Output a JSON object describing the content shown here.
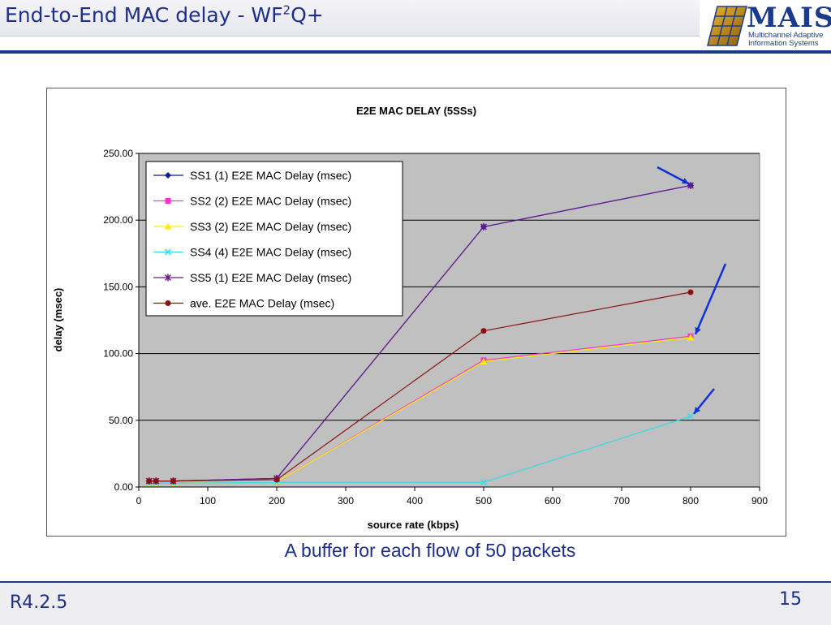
{
  "slide": {
    "title": "End-to-End MAC delay - WF",
    "title_sup": "2",
    "title_suffix": "Q+",
    "caption": "A buffer for each flow of 50 packets",
    "version": "R4.2.5",
    "page_number": "15"
  },
  "logo": {
    "word": "MAIS",
    "line1": "Multichannel Adaptive",
    "line2": "Information Systems",
    "color": "#1c3a8c"
  },
  "chart_data": {
    "type": "line",
    "title": "E2E MAC DELAY (5SSs)",
    "xlabel": "source rate (kbps)",
    "ylabel": "delay (msec)",
    "xlim": [
      0,
      900
    ],
    "ylim": [
      0,
      250
    ],
    "xticks": [
      0,
      100,
      200,
      300,
      400,
      500,
      600,
      700,
      800,
      900
    ],
    "yticks": [
      "0.00",
      "50.00",
      "100.00",
      "150.00",
      "200.00",
      "250.00"
    ],
    "grid": true,
    "legend_position": "top-left",
    "x": [
      15,
      25,
      50,
      200,
      500,
      800
    ],
    "series": [
      {
        "name": "SS1 (1) E2E MAC Delay (msec)",
        "color": "#0a1e96",
        "marker": "diamond",
        "values": [
          4.5,
          4.5,
          4.5,
          6.5,
          195,
          226
        ]
      },
      {
        "name": "SS2 (2) E2E MAC Delay (msec)",
        "color": "#ff33cc",
        "marker": "square",
        "values": [
          3,
          3,
          3,
          4,
          95,
          113
        ]
      },
      {
        "name": "SS3 (2) E2E MAC Delay (msec)",
        "color": "#ffee00",
        "marker": "triangle",
        "values": [
          3,
          3,
          3,
          4,
          94,
          112
        ]
      },
      {
        "name": "SS4 (4) E2E MAC Delay (msec)",
        "color": "#33dde6",
        "marker": "x",
        "values": [
          3,
          3,
          3,
          3.5,
          3.5,
          53
        ]
      },
      {
        "name": "SS5 (1) E2E MAC Delay (msec)",
        "color": "#6a1a8c",
        "marker": "star",
        "values": [
          4.5,
          4.5,
          4.5,
          6.5,
          195,
          226
        ]
      },
      {
        "name": "ave. E2E MAC Delay (msec)",
        "color": "#8c1010",
        "marker": "circle",
        "values": [
          4.5,
          4.5,
          4.5,
          5.5,
          117,
          146
        ]
      }
    ],
    "plot_background": "#c0c0c0",
    "annotations": [
      {
        "target_x": 800,
        "target_y": 226,
        "arrow_color": "#1030d8"
      },
      {
        "target_x": 800,
        "target_y": 112,
        "arrow_color": "#1030d8"
      },
      {
        "target_x": 800,
        "target_y": 53,
        "arrow_color": "#1030d8"
      }
    ]
  }
}
